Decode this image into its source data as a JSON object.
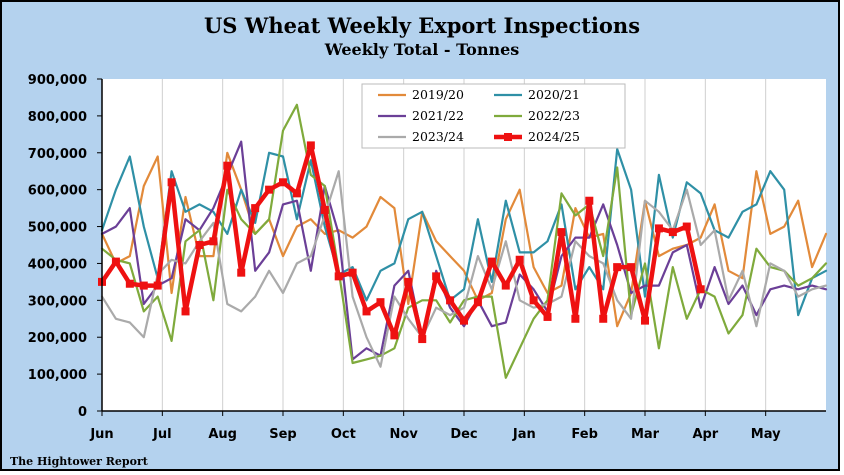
{
  "chart_data": {
    "type": "line",
    "title": "US Wheat Weekly Export Inspections",
    "subtitle": "Weekly Total - Tonnes",
    "source": "The Hightower Report",
    "ylim": [
      0,
      900000
    ],
    "y_ticks": [
      0,
      100000,
      200000,
      300000,
      400000,
      500000,
      600000,
      700000,
      800000,
      900000
    ],
    "y_tick_labels": [
      "0",
      "100,000",
      "200,000",
      "300,000",
      "400,000",
      "500,000",
      "600,000",
      "700,000",
      "800,000",
      "900,000"
    ],
    "x_tick_labels": [
      "Jun",
      "Jul",
      "Aug",
      "Sep",
      "Oct",
      "Nov",
      "Dec",
      "Jan",
      "Feb",
      "Mar",
      "Apr",
      "May"
    ],
    "weeks": 53,
    "grid": "vertical",
    "legend_placement": "top-center",
    "series": [
      {
        "name": "2019/20",
        "color": "#e28a3a",
        "width": 2.2,
        "values": [
          480000,
          400000,
          420000,
          610000,
          690000,
          320000,
          580000,
          420000,
          420000,
          700000,
          600000,
          480000,
          520000,
          420000,
          500000,
          520000,
          480000,
          490000,
          470000,
          500000,
          580000,
          550000,
          290000,
          540000,
          460000,
          420000,
          380000,
          300000,
          320000,
          520000,
          600000,
          390000,
          320000,
          340000,
          550000,
          470000,
          480000,
          230000,
          320000,
          570000,
          420000,
          440000,
          450000,
          470000,
          560000,
          380000,
          360000,
          650000,
          480000,
          500000,
          570000,
          390000,
          480000
        ]
      },
      {
        "name": "2020/21",
        "color": "#2f90a6",
        "width": 2.2,
        "values": [
          490000,
          600000,
          690000,
          500000,
          360000,
          650000,
          540000,
          560000,
          540000,
          480000,
          600000,
          510000,
          700000,
          690000,
          520000,
          680000,
          500000,
          370000,
          390000,
          300000,
          380000,
          400000,
          520000,
          540000,
          420000,
          300000,
          330000,
          520000,
          350000,
          570000,
          430000,
          430000,
          460000,
          560000,
          330000,
          390000,
          330000,
          710000,
          600000,
          310000,
          640000,
          470000,
          620000,
          590000,
          490000,
          470000,
          540000,
          560000,
          650000,
          600000,
          260000,
          360000,
          380000
        ]
      },
      {
        "name": "2021/22",
        "color": "#6b3f97",
        "width": 2.2,
        "values": [
          480000,
          500000,
          550000,
          290000,
          340000,
          360000,
          520000,
          490000,
          550000,
          640000,
          730000,
          380000,
          430000,
          560000,
          570000,
          380000,
          610000,
          480000,
          140000,
          170000,
          150000,
          340000,
          380000,
          200000,
          380000,
          280000,
          230000,
          300000,
          230000,
          240000,
          370000,
          330000,
          270000,
          420000,
          470000,
          470000,
          560000,
          450000,
          320000,
          340000,
          340000,
          430000,
          450000,
          280000,
          390000,
          290000,
          340000,
          260000,
          330000,
          340000,
          330000,
          340000,
          330000
        ]
      },
      {
        "name": "2022/23",
        "color": "#7faa3c",
        "width": 2.2,
        "values": [
          440000,
          410000,
          400000,
          270000,
          310000,
          190000,
          460000,
          490000,
          300000,
          600000,
          520000,
          480000,
          520000,
          760000,
          830000,
          640000,
          610000,
          380000,
          130000,
          140000,
          150000,
          170000,
          280000,
          300000,
          300000,
          240000,
          300000,
          310000,
          310000,
          90000,
          170000,
          250000,
          300000,
          590000,
          530000,
          560000,
          420000,
          660000,
          260000,
          400000,
          170000,
          390000,
          250000,
          330000,
          310000,
          210000,
          260000,
          440000,
          390000,
          380000,
          340000,
          360000,
          400000
        ]
      },
      {
        "name": "2023/24",
        "color": "#aaaaaa",
        "width": 2.2,
        "values": [
          310000,
          250000,
          240000,
          200000,
          370000,
          410000,
          400000,
          460000,
          510000,
          290000,
          270000,
          310000,
          380000,
          320000,
          400000,
          420000,
          530000,
          650000,
          310000,
          200000,
          120000,
          310000,
          250000,
          200000,
          280000,
          260000,
          280000,
          420000,
          330000,
          460000,
          300000,
          280000,
          290000,
          310000,
          460000,
          420000,
          400000,
          300000,
          250000,
          570000,
          540000,
          490000,
          600000,
          450000,
          490000,
          300000,
          380000,
          230000,
          400000,
          380000,
          310000,
          330000,
          340000
        ]
      },
      {
        "name": "2024/25",
        "color": "#ee1111",
        "width": 4.5,
        "values": [
          350000,
          405000,
          345000,
          340000,
          340000,
          620000,
          270000,
          450000,
          460000,
          665000,
          375000,
          550000,
          600000,
          620000,
          590000,
          720000,
          545000,
          365000,
          375000,
          270000,
          295000,
          205000,
          350000,
          195000,
          365000,
          300000,
          245000,
          295000,
          405000,
          340000,
          410000,
          300000,
          255000,
          485000,
          250000,
          570000,
          250000,
          390000,
          390000,
          245000,
          495000,
          485000,
          500000,
          330000
        ]
      }
    ]
  }
}
